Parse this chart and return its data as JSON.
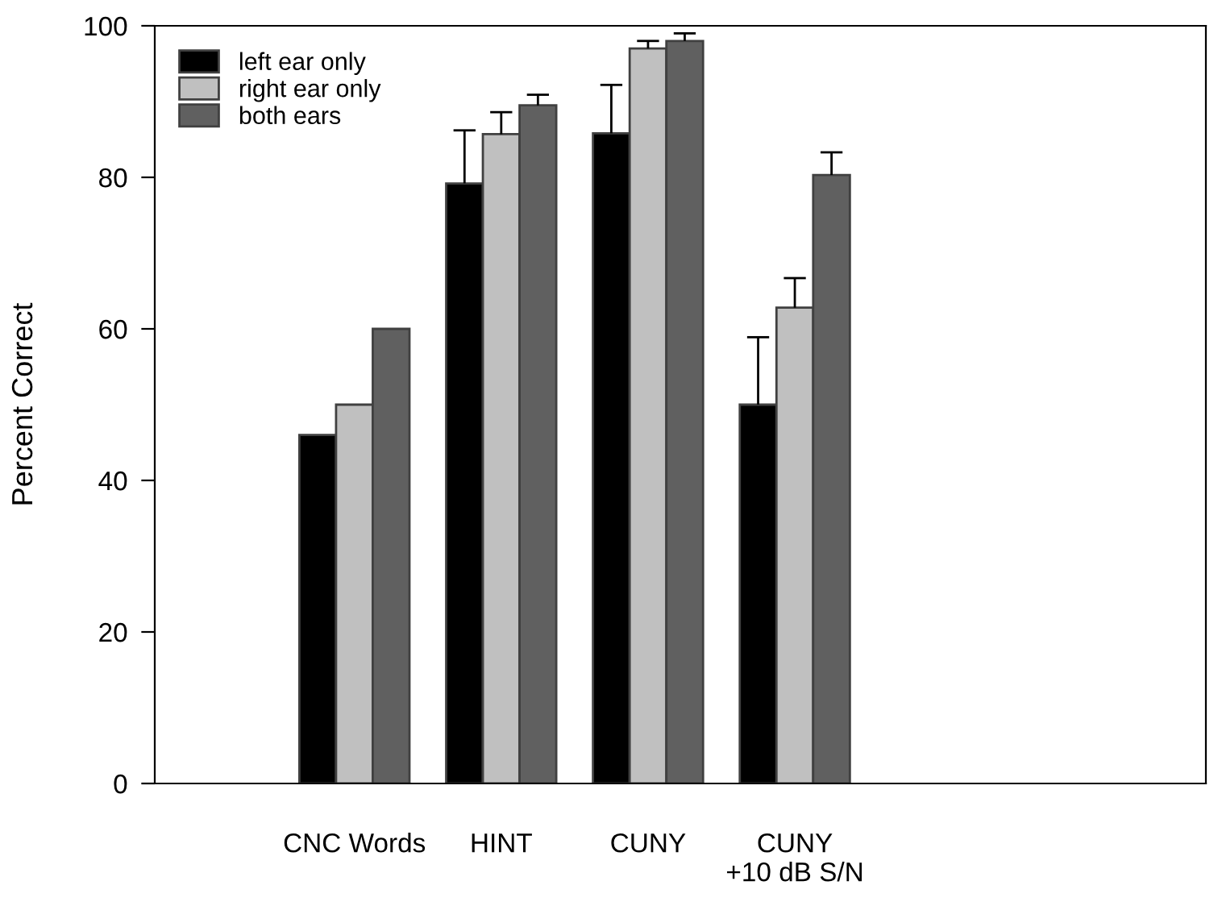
{
  "chart_data": {
    "type": "bar",
    "ylabel": "Percent Correct",
    "categories": [
      "CNC Words",
      "HINT",
      "CUNY",
      "CUNY\n+10 dB S/N"
    ],
    "series": [
      {
        "name": "left ear only",
        "color": "#000000",
        "values": [
          46,
          79.2,
          85.8,
          50
        ],
        "errors": [
          null,
          [
            79.2,
            86.2
          ],
          [
            85.8,
            92.2
          ],
          [
            50,
            58.9
          ]
        ]
      },
      {
        "name": "right ear only",
        "color": "#c0c0c0",
        "values": [
          50,
          85.7,
          97,
          62.8
        ],
        "errors": [
          null,
          [
            85.7,
            88.6
          ],
          [
            97,
            98
          ],
          [
            62.8,
            66.7
          ]
        ]
      },
      {
        "name": "both ears",
        "color": "#606060",
        "values": [
          60,
          89.5,
          98,
          80.3
        ],
        "errors": [
          null,
          [
            89.5,
            90.9
          ],
          [
            98,
            99
          ],
          [
            80.3,
            83.3
          ]
        ]
      }
    ],
    "ylim": [
      0,
      100
    ],
    "yticks": [
      0,
      20,
      40,
      60,
      80,
      100
    ],
    "grid": false,
    "legend": "top left"
  }
}
